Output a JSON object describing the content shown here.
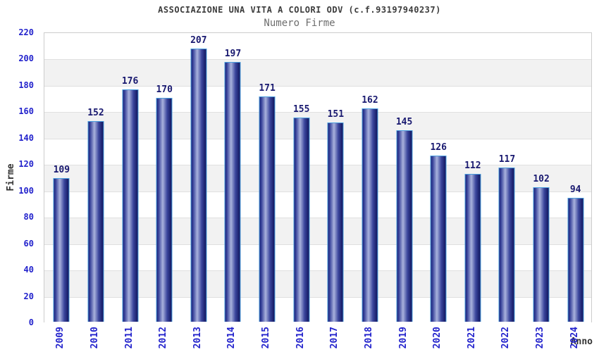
{
  "header": {
    "title": "ASSOCIAZIONE UNA VITA A COLORI ODV (c.f.93197940237)",
    "subtitle": "Numero Firme"
  },
  "chart_data": {
    "type": "bar",
    "title": "ASSOCIAZIONE UNA VITA A COLORI ODV (c.f.93197940237)",
    "subtitle": "Numero Firme",
    "categories": [
      "2009",
      "2010",
      "2011",
      "2012",
      "2013",
      "2014",
      "2015",
      "2016",
      "2017",
      "2018",
      "2019",
      "2020",
      "2021",
      "2022",
      "2023",
      "2024"
    ],
    "values": [
      109,
      152,
      176,
      170,
      207,
      197,
      171,
      155,
      151,
      162,
      145,
      126,
      112,
      117,
      102,
      94
    ],
    "xlabel": "Anno",
    "ylabel": "Firme",
    "ylim": [
      0,
      220
    ],
    "ytick_step": 20,
    "ytick_labels": [
      "0",
      "20",
      "40",
      "60",
      "80",
      "100",
      "120",
      "140",
      "160",
      "180",
      "200",
      "220"
    ],
    "grid": true,
    "legend": "none",
    "band_colors": [
      "#ffffff",
      "#f2f2f2"
    ],
    "colors": {
      "title": "#3c3c3c",
      "subtitle": "#6e6e6e",
      "tick_label": "#2222cc",
      "value_label": "#191970",
      "axis_title": "#333333",
      "plot_border": "#cccccc",
      "gridline": "#e0e0e0",
      "bar_border": "#4a9ede",
      "bar_edge": "#1a2178",
      "bar_mid": "#3a459c",
      "bar_highlight": "#a9b2dd",
      "bar_edge_dark": "#11165e"
    }
  }
}
